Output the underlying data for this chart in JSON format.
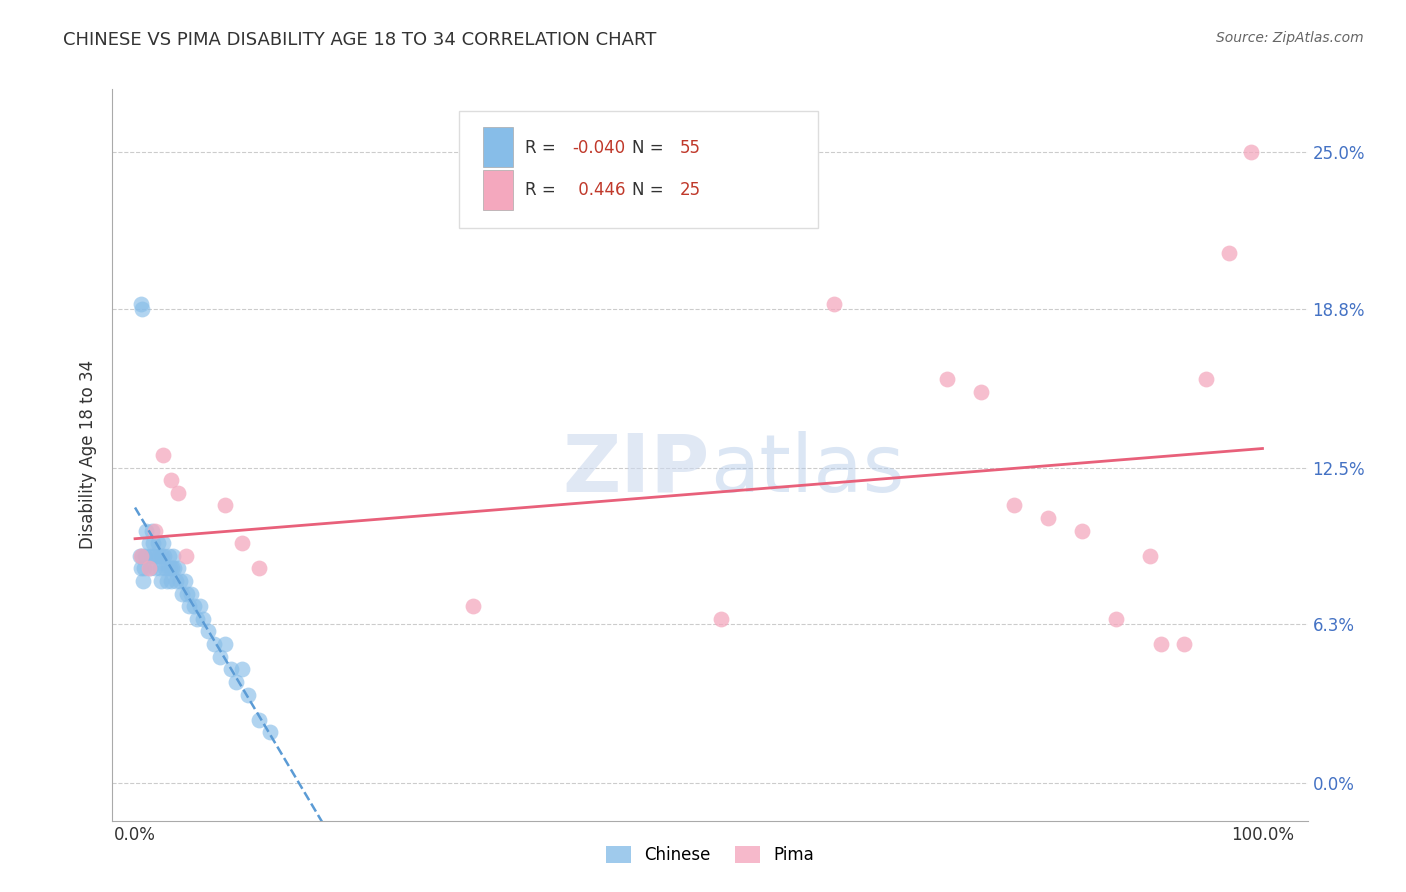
{
  "title": "CHINESE VS PIMA DISABILITY AGE 18 TO 34 CORRELATION CHART",
  "source": "Source: ZipAtlas.com",
  "ylabel": "Disability Age 18 to 34",
  "xlim": [
    -0.02,
    1.04
  ],
  "ylim": [
    -0.015,
    0.275
  ],
  "yticks": [
    0.0,
    0.063,
    0.125,
    0.188,
    0.25
  ],
  "ytick_labels": [
    "0.0%",
    "6.3%",
    "12.5%",
    "18.8%",
    "25.0%"
  ],
  "xtick_labels": [
    "0.0%",
    "100.0%"
  ],
  "background_color": "#ffffff",
  "legend_r_chinese": "-0.040",
  "legend_n_chinese": "55",
  "legend_r_pima": "0.446",
  "legend_n_pima": "25",
  "chinese_color": "#87bde8",
  "pima_color": "#f4a8be",
  "chinese_line_color": "#5b9bd5",
  "pima_line_color": "#e8607a",
  "grid_color": "#cccccc",
  "chinese_x": [
    0.004,
    0.005,
    0.006,
    0.007,
    0.008,
    0.009,
    0.01,
    0.012,
    0.013,
    0.014,
    0.015,
    0.016,
    0.017,
    0.018,
    0.019,
    0.02,
    0.021,
    0.022,
    0.023,
    0.024,
    0.025,
    0.026,
    0.027,
    0.028,
    0.029,
    0.03,
    0.031,
    0.032,
    0.033,
    0.034,
    0.035,
    0.036,
    0.038,
    0.04,
    0.042,
    0.044,
    0.046,
    0.048,
    0.05,
    0.052,
    0.055,
    0.058,
    0.06,
    0.065,
    0.07,
    0.075,
    0.08,
    0.085,
    0.09,
    0.095,
    0.1,
    0.11,
    0.12,
    0.005,
    0.006
  ],
  "chinese_y": [
    0.09,
    0.085,
    0.09,
    0.08,
    0.085,
    0.09,
    0.1,
    0.095,
    0.085,
    0.09,
    0.1,
    0.095,
    0.09,
    0.085,
    0.09,
    0.095,
    0.09,
    0.085,
    0.08,
    0.09,
    0.095,
    0.09,
    0.085,
    0.08,
    0.085,
    0.09,
    0.085,
    0.08,
    0.085,
    0.09,
    0.085,
    0.08,
    0.085,
    0.08,
    0.075,
    0.08,
    0.075,
    0.07,
    0.075,
    0.07,
    0.065,
    0.07,
    0.065,
    0.06,
    0.055,
    0.05,
    0.055,
    0.045,
    0.04,
    0.045,
    0.035,
    0.025,
    0.02,
    0.19,
    0.188
  ],
  "pima_x": [
    0.005,
    0.012,
    0.018,
    0.025,
    0.032,
    0.038,
    0.045,
    0.08,
    0.095,
    0.11,
    0.3,
    0.52,
    0.62,
    0.72,
    0.75,
    0.78,
    0.81,
    0.84,
    0.87,
    0.9,
    0.91,
    0.93,
    0.95,
    0.97,
    0.99
  ],
  "pima_y": [
    0.09,
    0.085,
    0.1,
    0.13,
    0.12,
    0.115,
    0.09,
    0.11,
    0.095,
    0.085,
    0.07,
    0.065,
    0.19,
    0.16,
    0.155,
    0.11,
    0.105,
    0.1,
    0.065,
    0.09,
    0.055,
    0.055,
    0.16,
    0.21,
    0.25
  ]
}
